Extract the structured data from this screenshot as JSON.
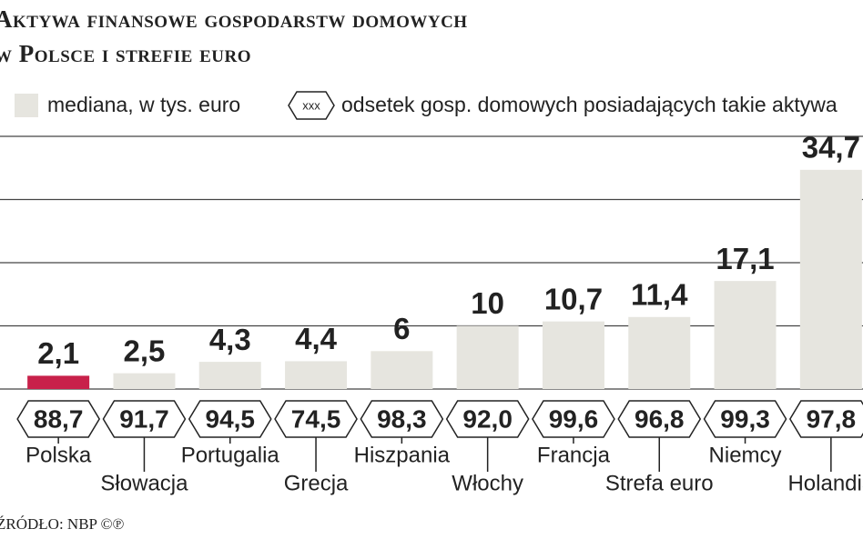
{
  "chart_data": {
    "type": "bar",
    "title": "Aktywa finansowe gospodarstw domowych",
    "subtitle": "w Polsce i strefie euro",
    "source": "ŹRÓDŁO: NBP ©℗",
    "categories": [
      "Polska",
      "Słowacja",
      "Portugalia",
      "Grecja",
      "Hiszpania",
      "Włochy",
      "Francja",
      "Strefa euro",
      "Niemcy",
      "Holandia"
    ],
    "series": [
      {
        "name": "mediana, w tys. euro",
        "color": "#e6e5df",
        "highlight_color": "#c8214a",
        "values": [
          2.1,
          2.5,
          4.3,
          4.4,
          6,
          10,
          10.7,
          11.4,
          17.1,
          34.7
        ],
        "value_labels": [
          "2,1",
          "2,5",
          "4,3",
          "4,4",
          "6",
          "10",
          "10,7",
          "11,4",
          "17,1",
          "34,7"
        ]
      },
      {
        "name": "odsetek gosp. domowych posiadających takie aktywa",
        "legend_symbol": "xxx",
        "values": [
          88.7,
          91.7,
          94.5,
          74.5,
          98.3,
          92.0,
          99.6,
          96.8,
          99.3,
          97.8
        ],
        "value_labels": [
          "88,7",
          "91,7",
          "94,5",
          "74,5",
          "98,3",
          "92,0",
          "99,6",
          "96,8",
          "99,3",
          "97,8"
        ]
      }
    ],
    "ylim": [
      0,
      40
    ],
    "yticks": [
      0,
      10,
      20,
      30,
      40
    ],
    "grid": true
  }
}
